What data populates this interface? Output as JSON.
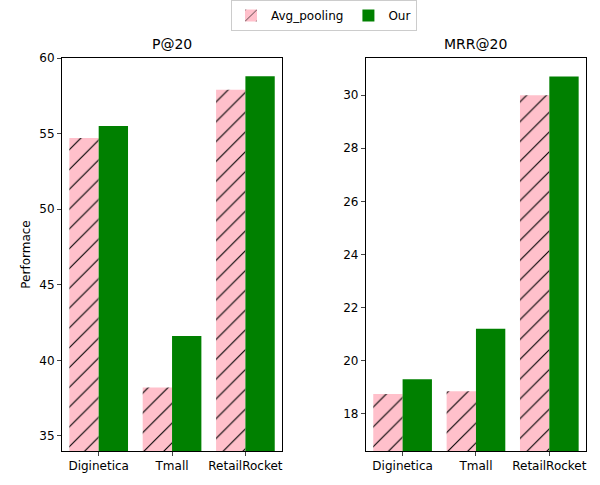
{
  "chart_data": [
    {
      "type": "bar",
      "title": "P@20",
      "y_label": "Performace",
      "categories": [
        "Diginetica",
        "Tmall",
        "RetailRocket"
      ],
      "series": [
        {
          "name": "Avg_pooling",
          "color": "#ffc0cb",
          "marker": "hatch",
          "values": [
            54.7,
            38.2,
            57.9
          ]
        },
        {
          "name": "Our",
          "color": "#008000",
          "values": [
            55.5,
            41.6,
            58.8
          ]
        }
      ],
      "ylim": [
        34,
        60
      ],
      "yticks": [
        35,
        40,
        45,
        50,
        55,
        60
      ],
      "legend": "top"
    },
    {
      "type": "bar",
      "title": "MRR@20",
      "categories": [
        "Diginetica",
        "Tmall",
        "RetailRocket"
      ],
      "series": [
        {
          "name": "Avg_pooling",
          "color": "#ffc0cb",
          "marker": "hatch",
          "values": [
            18.75,
            18.85,
            30.0
          ]
        },
        {
          "name": "Our",
          "color": "#008000",
          "values": [
            19.3,
            21.2,
            30.7
          ]
        }
      ],
      "ylim": [
        16.6,
        31.4
      ],
      "yticks": [
        18,
        20,
        22,
        24,
        26,
        28,
        30
      ]
    }
  ]
}
